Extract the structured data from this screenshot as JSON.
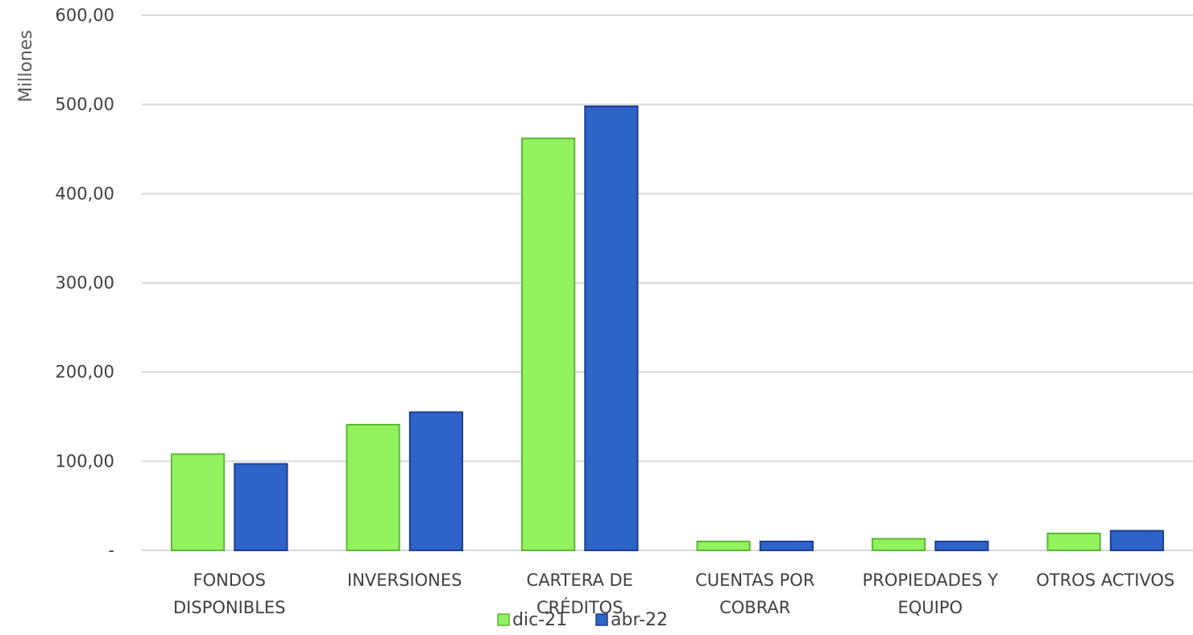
{
  "chart_data": {
    "type": "bar",
    "ylabel": "Millones",
    "ylim": [
      0,
      600
    ],
    "yticks": [
      {
        "value": 0,
        "label": "-"
      },
      {
        "value": 100,
        "label": "100,00"
      },
      {
        "value": 200,
        "label": "200,00"
      },
      {
        "value": 300,
        "label": "300,00"
      },
      {
        "value": 400,
        "label": "400,00"
      },
      {
        "value": 500,
        "label": "500,00"
      },
      {
        "value": 600,
        "label": "600,00"
      }
    ],
    "grid": true,
    "legend_position": "bottom",
    "categories": [
      [
        "FONDOS",
        "DISPONIBLES"
      ],
      [
        "INVERSIONES"
      ],
      [
        "CARTERA DE",
        "CRÉDITOS"
      ],
      [
        "CUENTAS POR",
        "COBRAR"
      ],
      [
        "PROPIEDADES Y",
        "EQUIPO"
      ],
      [
        "OTROS ACTIVOS"
      ]
    ],
    "series": [
      {
        "name": "dic-21",
        "color": "#92f25e",
        "edge": "#5cb832",
        "values": [
          108,
          141,
          462,
          10,
          13,
          19
        ]
      },
      {
        "name": "abr-22",
        "color": "#2e63c8",
        "edge": "#1e3f8f",
        "values": [
          97,
          155,
          498,
          10,
          10,
          22
        ]
      }
    ]
  }
}
